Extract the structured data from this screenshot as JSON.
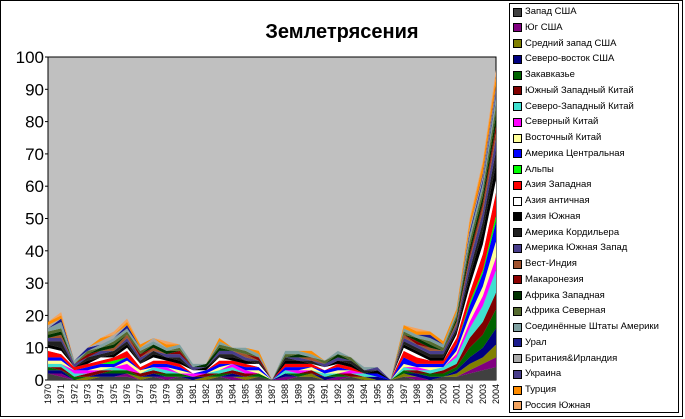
{
  "chart_data": {
    "type": "area",
    "title": "Землетрясения",
    "xlabel": "",
    "ylabel": "",
    "ylim": [
      0,
      100
    ],
    "yticks": [
      0,
      10,
      20,
      30,
      40,
      50,
      60,
      70,
      80,
      90,
      100
    ],
    "legend_position": "right",
    "plot_background": "#c0c0c0",
    "categories": [
      "1970",
      "1971",
      "1972",
      "1973",
      "1974",
      "1975",
      "1976",
      "1977",
      "1978",
      "1979",
      "1980",
      "1981",
      "1982",
      "1983",
      "1984",
      "1985",
      "1986",
      "1987",
      "1988",
      "1989",
      "1990",
      "1991",
      "1992",
      "1993",
      "1994",
      "1995",
      "1996",
      "1997",
      "1998",
      "1999",
      "2000",
      "2001",
      "2002",
      "2003",
      "2004"
    ],
    "series": [
      {
        "name": "Запад США",
        "color": "#404040",
        "values": [
          2,
          1,
          0,
          0,
          1,
          1,
          1,
          0,
          1,
          0,
          1,
          0,
          0,
          1,
          0,
          0,
          1,
          0,
          0,
          1,
          1,
          0,
          0,
          1,
          0,
          0,
          0,
          1,
          0,
          0,
          1,
          1,
          2,
          3,
          4
        ]
      },
      {
        "name": "Юг США",
        "color": "#800080",
        "values": [
          0,
          1,
          0,
          0,
          0,
          0,
          1,
          0,
          0,
          1,
          0,
          0,
          0,
          0,
          1,
          0,
          0,
          0,
          1,
          0,
          0,
          0,
          1,
          0,
          0,
          0,
          0,
          0,
          1,
          0,
          0,
          0,
          1,
          2,
          3
        ]
      },
      {
        "name": "Средний запад США",
        "color": "#808000",
        "values": [
          0,
          0,
          0,
          1,
          0,
          0,
          0,
          1,
          0,
          0,
          0,
          0,
          1,
          0,
          0,
          1,
          0,
          0,
          0,
          0,
          1,
          0,
          0,
          0,
          1,
          0,
          0,
          1,
          0,
          0,
          0,
          1,
          2,
          2,
          4
        ]
      },
      {
        "name": "Северо-восток США",
        "color": "#000080",
        "values": [
          1,
          1,
          0,
          0,
          1,
          1,
          0,
          0,
          1,
          0,
          0,
          1,
          0,
          0,
          1,
          0,
          0,
          0,
          1,
          0,
          0,
          1,
          0,
          0,
          0,
          1,
          0,
          0,
          1,
          1,
          0,
          1,
          2,
          3,
          5
        ]
      },
      {
        "name": "Закавказье",
        "color": "#006400",
        "values": [
          1,
          0,
          1,
          0,
          0,
          1,
          1,
          0,
          0,
          1,
          1,
          0,
          0,
          1,
          0,
          0,
          1,
          0,
          0,
          1,
          0,
          0,
          1,
          0,
          0,
          0,
          0,
          1,
          0,
          1,
          1,
          1,
          3,
          4,
          6
        ]
      },
      {
        "name": "Южный Западный Китай",
        "color": "#800000",
        "values": [
          0,
          1,
          0,
          1,
          1,
          0,
          0,
          1,
          1,
          0,
          0,
          0,
          1,
          0,
          1,
          1,
          0,
          0,
          0,
          0,
          1,
          0,
          0,
          1,
          0,
          0,
          0,
          0,
          1,
          0,
          1,
          1,
          3,
          4,
          5
        ]
      },
      {
        "name": "Северо-Западный Китай",
        "color": "#40e0d0",
        "values": [
          1,
          1,
          1,
          0,
          0,
          1,
          0,
          0,
          1,
          1,
          0,
          0,
          0,
          1,
          1,
          0,
          0,
          0,
          1,
          0,
          0,
          1,
          0,
          0,
          1,
          0,
          0,
          1,
          0,
          1,
          1,
          2,
          3,
          5,
          7
        ]
      },
      {
        "name": "Северный Китай",
        "color": "#ff00ff",
        "values": [
          0,
          0,
          1,
          1,
          0,
          0,
          2,
          0,
          0,
          1,
          0,
          1,
          0,
          0,
          1,
          1,
          0,
          0,
          0,
          1,
          0,
          0,
          0,
          1,
          0,
          0,
          0,
          0,
          1,
          0,
          0,
          1,
          2,
          3,
          4
        ]
      },
      {
        "name": "Восточный Китай",
        "color": "#ffff99",
        "values": [
          1,
          1,
          0,
          0,
          1,
          0,
          1,
          1,
          0,
          0,
          1,
          0,
          0,
          1,
          0,
          0,
          1,
          0,
          0,
          0,
          1,
          0,
          1,
          0,
          0,
          0,
          0,
          1,
          0,
          1,
          0,
          1,
          2,
          3,
          5
        ]
      },
      {
        "name": "Америка Центральная",
        "color": "#0000ff",
        "values": [
          1,
          1,
          0,
          1,
          1,
          1,
          1,
          0,
          1,
          1,
          1,
          0,
          1,
          1,
          0,
          1,
          1,
          0,
          1,
          1,
          0,
          1,
          1,
          0,
          0,
          1,
          0,
          2,
          1,
          1,
          1,
          2,
          3,
          4,
          6
        ]
      },
      {
        "name": "Альпы",
        "color": "#00ff00",
        "values": [
          0,
          0,
          0,
          0,
          0,
          1,
          0,
          0,
          0,
          0,
          0,
          0,
          0,
          0,
          0,
          0,
          0,
          0,
          0,
          0,
          0,
          0,
          0,
          0,
          0,
          0,
          0,
          0,
          0,
          0,
          0,
          0,
          1,
          1,
          2
        ]
      },
      {
        "name": "Азия Западная",
        "color": "#ff0000",
        "values": [
          2,
          1,
          1,
          1,
          1,
          1,
          2,
          1,
          1,
          1,
          1,
          0,
          0,
          1,
          1,
          1,
          0,
          0,
          1,
          1,
          1,
          0,
          1,
          1,
          0,
          0,
          0,
          2,
          2,
          1,
          1,
          2,
          3,
          5,
          7
        ]
      },
      {
        "name": "Азия античная",
        "color": "#ffffff",
        "values": [
          1,
          1,
          0,
          0,
          1,
          0,
          1,
          1,
          1,
          0,
          0,
          1,
          0,
          1,
          0,
          0,
          1,
          0,
          0,
          0,
          0,
          1,
          0,
          0,
          0,
          0,
          0,
          1,
          1,
          0,
          0,
          1,
          2,
          3,
          4
        ]
      },
      {
        "name": "Азия Южная",
        "color": "#000000",
        "values": [
          1,
          1,
          0,
          1,
          0,
          1,
          1,
          0,
          1,
          1,
          1,
          0,
          1,
          0,
          1,
          1,
          0,
          0,
          1,
          1,
          0,
          0,
          1,
          1,
          0,
          1,
          0,
          1,
          1,
          1,
          1,
          1,
          3,
          4,
          5
        ]
      },
      {
        "name": "Америка Кордильера",
        "color": "#202020",
        "values": [
          1,
          2,
          0,
          1,
          1,
          1,
          1,
          1,
          1,
          0,
          1,
          0,
          0,
          1,
          1,
          0,
          1,
          0,
          1,
          0,
          1,
          0,
          0,
          1,
          1,
          0,
          0,
          1,
          1,
          1,
          1,
          1,
          2,
          3,
          4
        ]
      },
      {
        "name": "Америка Южная Запад",
        "color": "#483d8b",
        "values": [
          1,
          1,
          1,
          0,
          1,
          0,
          1,
          1,
          0,
          1,
          1,
          1,
          0,
          1,
          1,
          1,
          0,
          0,
          0,
          1,
          0,
          1,
          1,
          0,
          0,
          1,
          0,
          1,
          1,
          1,
          1,
          1,
          3,
          3,
          4
        ]
      },
      {
        "name": "Вест-Индия",
        "color": "#a0522d",
        "values": [
          0,
          1,
          0,
          0,
          0,
          1,
          1,
          0,
          1,
          0,
          0,
          0,
          0,
          0,
          0,
          1,
          0,
          0,
          0,
          0,
          1,
          0,
          0,
          0,
          0,
          0,
          0,
          1,
          0,
          1,
          0,
          1,
          1,
          2,
          2
        ]
      },
      {
        "name": "Макаронезия",
        "color": "#8b0000",
        "values": [
          0,
          0,
          0,
          1,
          0,
          0,
          0,
          1,
          0,
          0,
          1,
          0,
          0,
          0,
          0,
          0,
          1,
          0,
          0,
          0,
          0,
          0,
          0,
          0,
          0,
          0,
          0,
          0,
          1,
          0,
          0,
          0,
          1,
          1,
          2
        ]
      },
      {
        "name": "Африка Западная",
        "color": "#003300",
        "values": [
          1,
          1,
          0,
          0,
          1,
          1,
          0,
          0,
          1,
          1,
          0,
          0,
          1,
          1,
          0,
          0,
          0,
          0,
          0,
          1,
          0,
          0,
          1,
          0,
          0,
          0,
          0,
          0,
          1,
          1,
          0,
          1,
          2,
          2,
          3
        ]
      },
      {
        "name": "Африка Северная",
        "color": "#556b2f",
        "values": [
          1,
          1,
          0,
          1,
          0,
          1,
          1,
          1,
          0,
          0,
          1,
          0,
          0,
          1,
          1,
          1,
          0,
          0,
          1,
          0,
          0,
          1,
          0,
          1,
          0,
          0,
          0,
          1,
          0,
          1,
          1,
          1,
          2,
          2,
          3
        ]
      },
      {
        "name": "Соединённые Штаты Америки",
        "color": "#7fa0a0",
        "values": [
          1,
          2,
          1,
          0,
          1,
          1,
          1,
          1,
          1,
          1,
          1,
          1,
          0,
          1,
          0,
          1,
          1,
          0,
          1,
          1,
          1,
          0,
          1,
          0,
          1,
          0,
          0,
          1,
          1,
          1,
          1,
          1,
          2,
          2,
          3
        ]
      },
      {
        "name": "Урал",
        "color": "#1c1c8c",
        "values": [
          0,
          1,
          0,
          1,
          0,
          0,
          1,
          0,
          0,
          0,
          0,
          0,
          0,
          0,
          0,
          0,
          0,
          0,
          0,
          0,
          0,
          0,
          0,
          0,
          0,
          0,
          0,
          0,
          0,
          1,
          0,
          0,
          1,
          1,
          1
        ]
      },
      {
        "name": "Британия&Ирландия",
        "color": "#a9a9a9",
        "values": [
          1,
          0,
          0,
          0,
          1,
          1,
          0,
          0,
          1,
          0,
          0,
          0,
          0,
          0,
          0,
          0,
          0,
          0,
          0,
          0,
          0,
          0,
          0,
          0,
          0,
          0,
          0,
          0,
          0,
          0,
          0,
          0,
          1,
          1,
          1
        ]
      },
      {
        "name": "Украина",
        "color": "#483d8b",
        "values": [
          0,
          0,
          0,
          0,
          0,
          0,
          0,
          0,
          0,
          0,
          0,
          0,
          0,
          0,
          0,
          0,
          0,
          0,
          0,
          0,
          0,
          0,
          0,
          0,
          0,
          0,
          0,
          0,
          0,
          0,
          0,
          0,
          0,
          1,
          1
        ]
      },
      {
        "name": "Турция",
        "color": "#ff8c00",
        "values": [
          1,
          1,
          0,
          0,
          1,
          0,
          1,
          1,
          0,
          1,
          0,
          0,
          0,
          1,
          0,
          0,
          1,
          0,
          0,
          0,
          1,
          0,
          0,
          0,
          0,
          0,
          0,
          1,
          1,
          1,
          1,
          1,
          2,
          3,
          3
        ]
      },
      {
        "name": "Россия Южная",
        "color": "#f4a460",
        "values": [
          0,
          1,
          0,
          0,
          0,
          1,
          1,
          0,
          0,
          1,
          0,
          0,
          0,
          0,
          0,
          0,
          0,
          0,
          0,
          0,
          0,
          0,
          0,
          0,
          0,
          0,
          0,
          0,
          1,
          0,
          0,
          0,
          1,
          1,
          2
        ]
      }
    ]
  }
}
